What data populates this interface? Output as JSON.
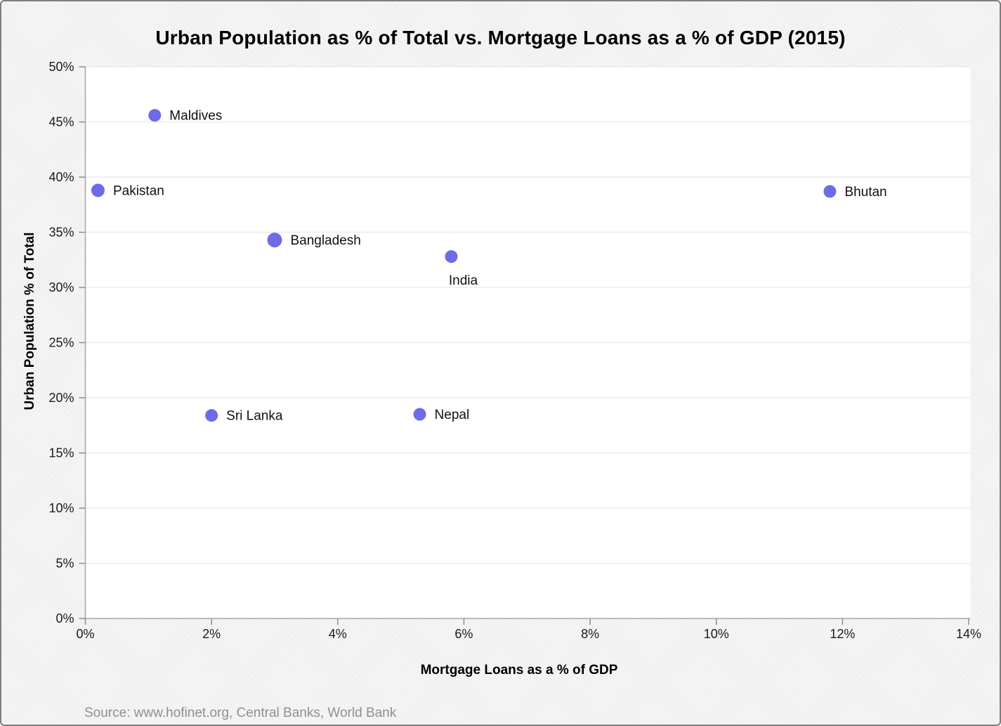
{
  "page": {
    "title": "Urban Population as % of Total vs. Mortgage Loans as a % of GDP (2015)",
    "source_note": "Source: www.hofinet.org, Central Banks, World Bank"
  },
  "chart_data": {
    "type": "scatter",
    "title": "Urban Population as % of Total vs. Mortgage Loans as a % of GDP (2015)",
    "xlabel": "Mortgage Loans as a % of GDP",
    "ylabel": "Urban Population % of Total",
    "xlim": [
      0,
      14
    ],
    "ylim": [
      0,
      50
    ],
    "x_ticks": [
      0,
      2,
      4,
      6,
      8,
      10,
      12,
      14
    ],
    "x_tick_labels": [
      "0%",
      "2%",
      "4%",
      "6%",
      "8%",
      "10%",
      "12%",
      "14%"
    ],
    "y_ticks": [
      0,
      5,
      10,
      15,
      20,
      25,
      30,
      35,
      40,
      45,
      50
    ],
    "y_tick_labels": [
      "0%",
      "5%",
      "10%",
      "15%",
      "20%",
      "25%",
      "30%",
      "35%",
      "40%",
      "45%",
      "50%"
    ],
    "grid": "horizontal",
    "legend": "none",
    "point_color": "#6C6CE8",
    "points": [
      {
        "label": "Pakistan",
        "x": 0.2,
        "y": 38.8,
        "r": 9.5,
        "label_position": "right"
      },
      {
        "label": "Maldives",
        "x": 1.1,
        "y": 45.6,
        "r": 9,
        "label_position": "right"
      },
      {
        "label": "Sri Lanka",
        "x": 2.0,
        "y": 18.4,
        "r": 9,
        "label_position": "right"
      },
      {
        "label": "Bangladesh",
        "x": 3.0,
        "y": 34.3,
        "r": 10.5,
        "label_position": "right"
      },
      {
        "label": "Nepal",
        "x": 5.3,
        "y": 18.5,
        "r": 9,
        "label_position": "right"
      },
      {
        "label": "India",
        "x": 5.8,
        "y": 32.8,
        "r": 9,
        "label_position": "below"
      },
      {
        "label": "Bhutan",
        "x": 11.8,
        "y": 38.7,
        "r": 9,
        "label_position": "right"
      }
    ],
    "source": "Source: www.hofinet.org, Central Banks, World Bank"
  }
}
